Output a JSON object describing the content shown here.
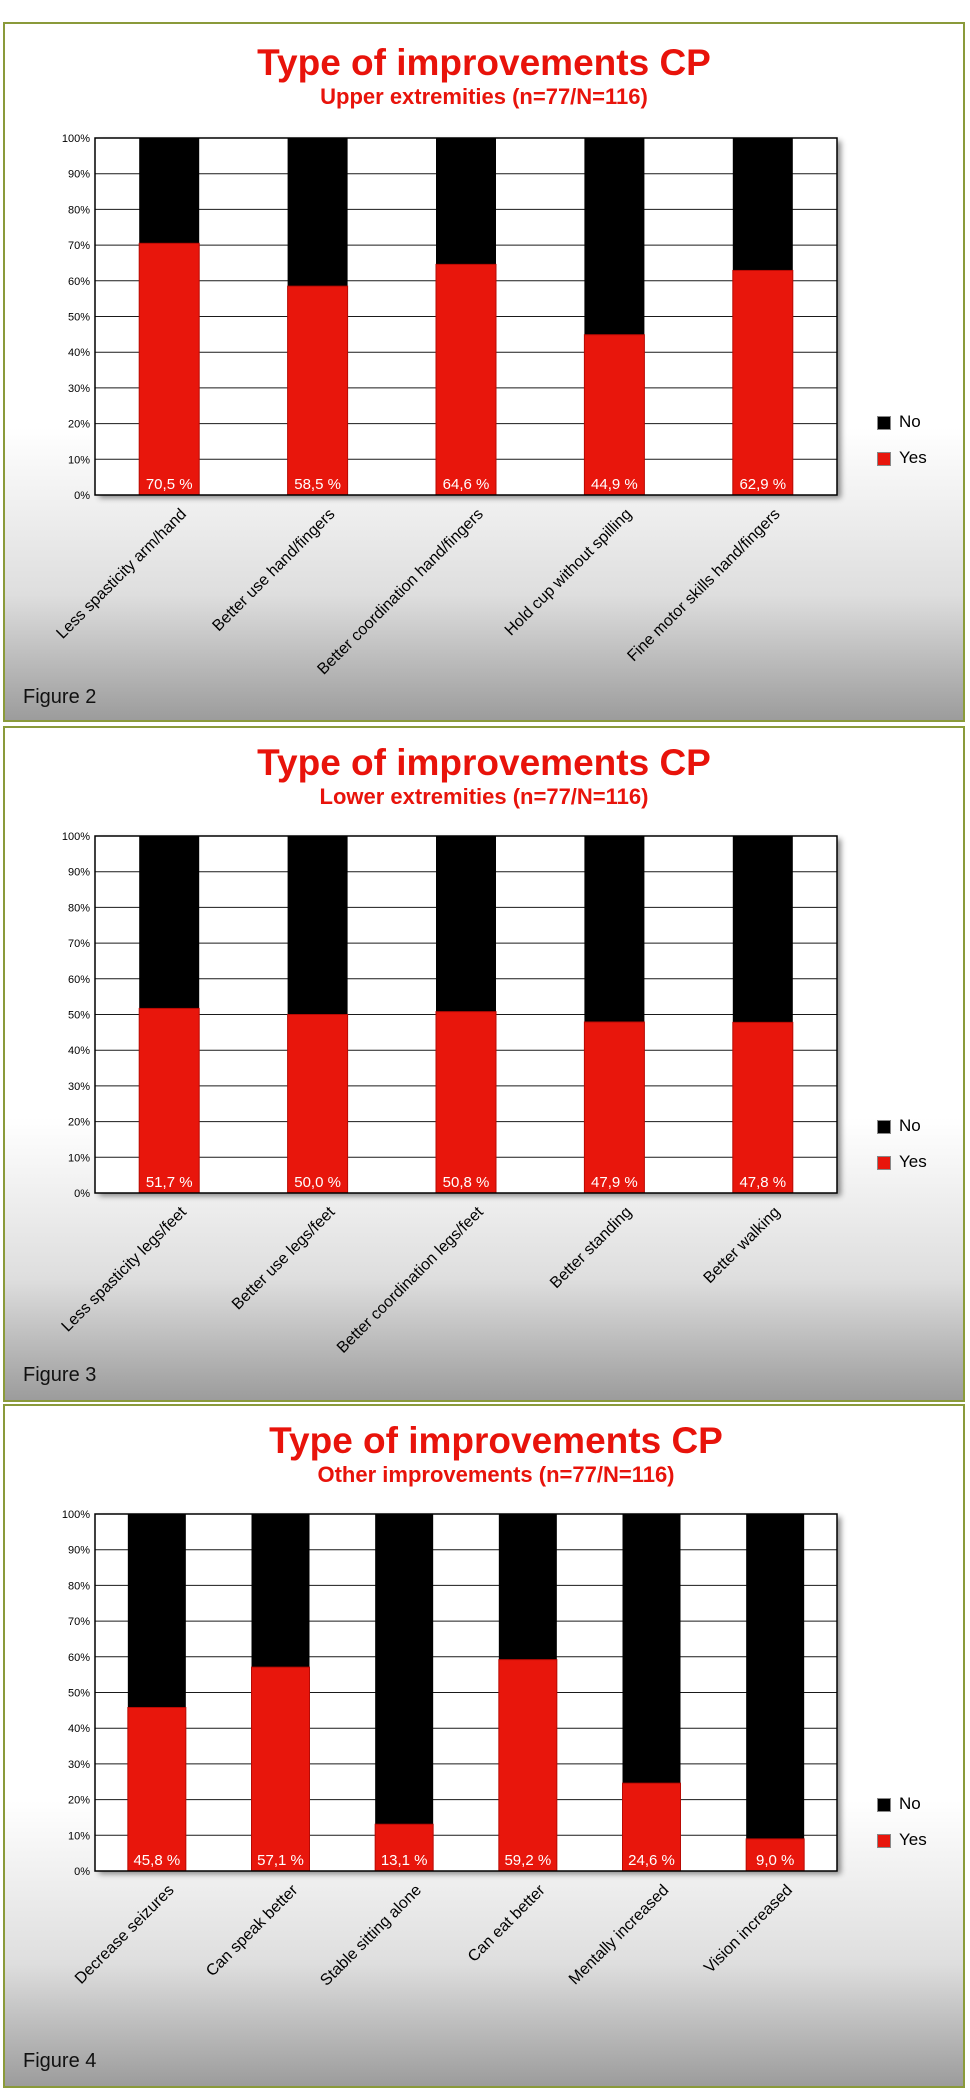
{
  "legend": {
    "no_label": "No",
    "yes_label": "Yes"
  },
  "colors": {
    "yes": "#e8160c",
    "no": "#000000",
    "title": "#e8130b",
    "border": "#8a9a3a"
  },
  "chart_data": [
    {
      "type": "bar",
      "stacked": true,
      "percent": true,
      "title": "Type of improvements CP",
      "subtitle": "Upper extremities (n=77/N=116)",
      "figure_label": "Figure 2",
      "categories": [
        "Less spasticity arm/hand",
        "Better use hand/fingers",
        "Better coordination hand/fingers",
        "Hold cup without spilling",
        "Fine motor skills hand/fingers"
      ],
      "series": [
        {
          "name": "Yes",
          "values": [
            70.5,
            58.5,
            64.6,
            44.9,
            62.9
          ]
        },
        {
          "name": "No",
          "values": [
            29.5,
            41.5,
            35.4,
            55.1,
            37.1
          ]
        }
      ],
      "data_labels": [
        "70,5 %",
        "58,5 %",
        "64,6 %",
        "44,9 %",
        "62,9 %"
      ],
      "y_ticks": [
        "0%",
        "10%",
        "20%",
        "30%",
        "40%",
        "50%",
        "60%",
        "70%",
        "80%",
        "90%",
        "100%"
      ],
      "ylim": [
        0,
        100
      ],
      "grid": true,
      "legend_position": "right"
    },
    {
      "type": "bar",
      "stacked": true,
      "percent": true,
      "title": "Type of improvements CP",
      "subtitle": "Lower extremities (n=77/N=116)",
      "figure_label": "Figure 3",
      "categories": [
        "Less spasticity legs/feet",
        "Better use legs/feet",
        "Better coordination legs/feet",
        "Better standing",
        "Better walking"
      ],
      "series": [
        {
          "name": "Yes",
          "values": [
            51.7,
            50.0,
            50.8,
            47.9,
            47.8
          ]
        },
        {
          "name": "No",
          "values": [
            48.3,
            50.0,
            49.2,
            52.1,
            52.2
          ]
        }
      ],
      "data_labels": [
        "51,7 %",
        "50,0 %",
        "50,8 %",
        "47,9 %",
        "47,8 %"
      ],
      "y_ticks": [
        "0%",
        "10%",
        "20%",
        "30%",
        "40%",
        "50%",
        "60%",
        "70%",
        "80%",
        "90%",
        "100%"
      ],
      "ylim": [
        0,
        100
      ],
      "grid": true,
      "legend_position": "right"
    },
    {
      "type": "bar",
      "stacked": true,
      "percent": true,
      "title": "Type of improvements CP",
      "subtitle": "Other improvements (n=77/N=116)",
      "figure_label": "Figure 4",
      "categories": [
        "Decrease seizures",
        "Can speak better",
        "Stable sitting alone",
        "Can eat better",
        "Mentally increased",
        "Vision increased"
      ],
      "series": [
        {
          "name": "Yes",
          "values": [
            45.8,
            57.1,
            13.1,
            59.2,
            24.6,
            9.0
          ]
        },
        {
          "name": "No",
          "values": [
            54.2,
            42.9,
            86.9,
            40.8,
            75.4,
            91.0
          ]
        }
      ],
      "data_labels": [
        "45,8 %",
        "57,1 %",
        "13,1 %",
        "59,2 %",
        "24,6 %",
        "9,0 %"
      ],
      "y_ticks": [
        "0%",
        "10%",
        "20%",
        "30%",
        "40%",
        "50%",
        "60%",
        "70%",
        "80%",
        "90%",
        "100%"
      ],
      "ylim": [
        0,
        100
      ],
      "grid": true,
      "legend_position": "right"
    }
  ]
}
